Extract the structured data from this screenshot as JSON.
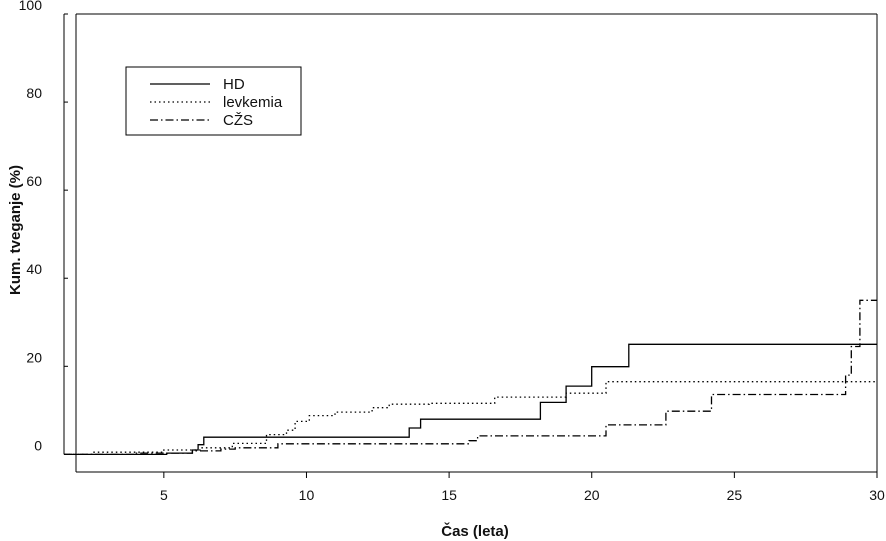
{
  "chart_data": {
    "type": "line",
    "xlabel": "Čas (leta)",
    "ylabel": "Kum. tveganje (%)",
    "xlim": [
      1.5,
      30
    ],
    "ylim": [
      -4,
      100
    ],
    "x_ticks": [
      5,
      10,
      15,
      20,
      25,
      30
    ],
    "y_ticks": [
      0,
      20,
      40,
      60,
      80,
      100
    ],
    "grid": false,
    "legend_position": "top-left",
    "series": [
      {
        "name": "HD",
        "style": "solid",
        "color": "#000000",
        "step": true,
        "x": [
          1.5,
          5.1,
          6.0,
          6.2,
          6.4,
          13.6,
          14.0,
          18.2,
          19.1,
          20.0,
          21.3,
          30.0
        ],
        "y": [
          0,
          0.3,
          1.0,
          2.2,
          3.9,
          6.0,
          8.0,
          11.8,
          15.5,
          19.9,
          25.0,
          25.0
        ]
      },
      {
        "name": "levkemia",
        "style": "dotted",
        "color": "#000000",
        "step": true,
        "x": [
          1.5,
          2.5,
          5.0,
          6.3,
          7.4,
          8.6,
          9.3,
          9.6,
          10.1,
          11.0,
          12.3,
          12.9,
          14.3,
          16.6,
          19.1,
          20.5,
          30.0
        ],
        "y": [
          0,
          0.5,
          1.0,
          1.5,
          2.5,
          4.5,
          5.5,
          7.5,
          8.8,
          9.6,
          10.6,
          11.4,
          11.6,
          13.0,
          13.9,
          16.5,
          16.5
        ]
      },
      {
        "name": "CŽS",
        "style": "dashdot",
        "color": "#000000",
        "step": true,
        "x": [
          1.5,
          4.0,
          6.0,
          7.0,
          7.5,
          9.0,
          15.7,
          16.0,
          20.5,
          21.7,
          22.6,
          24.2,
          28.9,
          29.1,
          29.4,
          30.0
        ],
        "y": [
          0,
          0.3,
          0.8,
          1.2,
          1.5,
          2.4,
          3.1,
          4.2,
          6.7,
          6.7,
          9.8,
          13.6,
          18.0,
          24.5,
          35.0,
          35.0
        ]
      }
    ]
  }
}
